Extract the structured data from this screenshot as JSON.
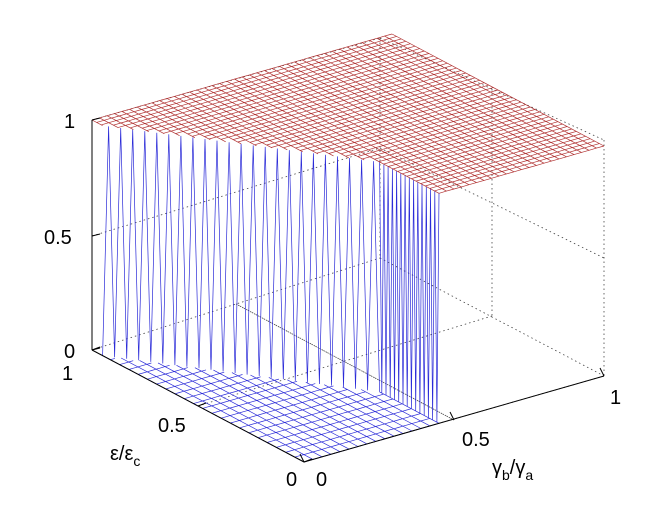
{
  "chart_data": {
    "type": "surface",
    "title": "",
    "x_axis": {
      "label_main": "γ",
      "label_sub": "b",
      "label_slash": "/γ",
      "label_sub2": "a",
      "range": [
        0,
        1
      ],
      "ticks": [
        "0",
        "0.5",
        "1"
      ]
    },
    "y_axis": {
      "label_main": "ε/ε",
      "label_sub": "c",
      "range": [
        0,
        1
      ],
      "ticks": [
        "0",
        "0.5",
        "1"
      ]
    },
    "z_axis": {
      "label": "",
      "range": [
        0,
        1
      ],
      "ticks": [
        "0",
        "0.5",
        "1"
      ]
    },
    "grid": true,
    "surface_description_values": {
      "low_value": 0,
      "high_value": 1,
      "transition_y_near_x0": 0.95,
      "transition_y_near_x1": 0.28
    },
    "colors": {
      "low_face": "#2a2ad8",
      "high_face": "#b03030",
      "grid": "#444444"
    }
  }
}
